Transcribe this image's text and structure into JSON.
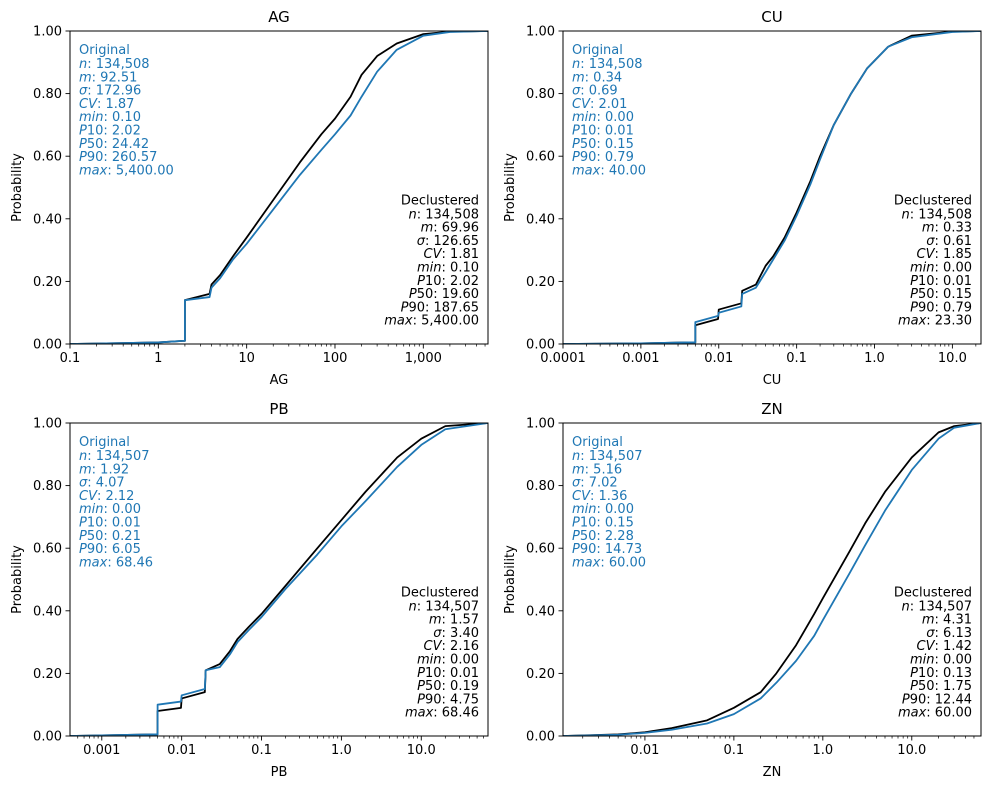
{
  "chart_data": [
    {
      "type": "line",
      "title": "AG",
      "xlabel": "AG",
      "ylabel": "Probability",
      "xscale": "log",
      "xlim": [
        0.1,
        5400
      ],
      "ylim": [
        0,
        1
      ],
      "xticks": [
        0.1,
        1,
        10,
        100,
        1000
      ],
      "xtick_labels": [
        "0.1",
        "1",
        "10",
        "100",
        "1,000"
      ],
      "yticks": [
        0,
        0.2,
        0.4,
        0.6,
        0.8,
        1.0
      ],
      "ytick_labels": [
        "0.00",
        "0.20",
        "0.40",
        "0.60",
        "0.80",
        "1.00"
      ],
      "series": [
        {
          "name": "Declustered",
          "color": "#000000",
          "x": [
            0.1,
            1.0,
            1.9,
            2.0,
            2.0,
            3.8,
            4.0,
            5.0,
            7.0,
            10,
            20,
            40,
            70,
            100,
            150,
            200,
            300,
            500,
            1000,
            2000,
            5400
          ],
          "y": [
            0,
            0.005,
            0.01,
            0.01,
            0.14,
            0.16,
            0.19,
            0.22,
            0.28,
            0.34,
            0.46,
            0.58,
            0.67,
            0.72,
            0.79,
            0.86,
            0.92,
            0.96,
            0.99,
            0.998,
            1.0
          ]
        },
        {
          "name": "Original",
          "color": "#1f77b4",
          "x": [
            0.1,
            1.0,
            1.9,
            2.0,
            2.0,
            3.8,
            4.0,
            5.0,
            7.0,
            10,
            20,
            40,
            70,
            100,
            150,
            200,
            300,
            500,
            1000,
            2000,
            5400
          ],
          "y": [
            0,
            0.005,
            0.01,
            0.01,
            0.14,
            0.15,
            0.18,
            0.21,
            0.27,
            0.32,
            0.43,
            0.54,
            0.62,
            0.67,
            0.73,
            0.79,
            0.87,
            0.94,
            0.985,
            0.997,
            1.0
          ]
        }
      ],
      "stats_original": {
        "label": "Original",
        "lines": [
          "n: 134,508",
          "m: 92.51",
          "σ: 172.96",
          "CV: 1.87",
          "min: 0.10",
          "P10: 2.02",
          "P50: 24.42",
          "P90: 260.57",
          "max: 5,400.00"
        ]
      },
      "stats_declustered": {
        "label": "Declustered",
        "lines": [
          "n: 134,508",
          "m: 69.96",
          "σ: 126.65",
          "CV: 1.81",
          "min: 0.10",
          "P10: 2.02",
          "P50: 19.60",
          "P90: 187.65",
          "max: 5,400.00"
        ]
      }
    },
    {
      "type": "line",
      "title": "CU",
      "xlabel": "CU",
      "ylabel": "Probability",
      "xscale": "log",
      "xlim": [
        0.0001,
        23.3
      ],
      "ylim": [
        0,
        1
      ],
      "xticks": [
        0.0001,
        0.001,
        0.01,
        0.1,
        1,
        10
      ],
      "xtick_labels": [
        "0.0001",
        "0.001",
        "0.01",
        "0.1",
        "1.0",
        "10.0"
      ],
      "yticks": [
        0,
        0.2,
        0.4,
        0.6,
        0.8,
        1.0
      ],
      "ytick_labels": [
        "0.00",
        "0.20",
        "0.40",
        "0.60",
        "0.80",
        "1.00"
      ],
      "series": [
        {
          "name": "Declustered",
          "color": "#000000",
          "x": [
            0.0001,
            0.001,
            0.004,
            0.005,
            0.005,
            0.0098,
            0.01,
            0.0195,
            0.02,
            0.03,
            0.04,
            0.05,
            0.07,
            0.1,
            0.15,
            0.2,
            0.3,
            0.5,
            0.8,
            1.5,
            3,
            10,
            23.3
          ],
          "y": [
            0,
            0.002,
            0.005,
            0.005,
            0.06,
            0.08,
            0.11,
            0.13,
            0.17,
            0.19,
            0.25,
            0.28,
            0.34,
            0.42,
            0.52,
            0.6,
            0.7,
            0.8,
            0.88,
            0.95,
            0.985,
            0.998,
            1.0
          ]
        },
        {
          "name": "Original",
          "color": "#1f77b4",
          "x": [
            0.0001,
            0.001,
            0.004,
            0.005,
            0.005,
            0.0098,
            0.01,
            0.0195,
            0.02,
            0.03,
            0.04,
            0.05,
            0.07,
            0.1,
            0.15,
            0.2,
            0.3,
            0.5,
            0.8,
            1.5,
            3,
            10,
            23.3
          ],
          "y": [
            0,
            0.002,
            0.005,
            0.005,
            0.07,
            0.09,
            0.1,
            0.12,
            0.16,
            0.18,
            0.23,
            0.27,
            0.33,
            0.41,
            0.51,
            0.59,
            0.7,
            0.8,
            0.88,
            0.95,
            0.98,
            0.997,
            1.0
          ]
        }
      ],
      "stats_original": {
        "label": "Original",
        "lines": [
          "n: 134,508",
          "m: 0.34",
          "σ: 0.69",
          "CV: 2.01",
          "min: 0.00",
          "P10: 0.01",
          "P50: 0.15",
          "P90: 0.79",
          "max: 40.00"
        ]
      },
      "stats_declustered": {
        "label": "Declustered",
        "lines": [
          "n: 134,508",
          "m: 0.33",
          "σ: 0.61",
          "CV: 1.85",
          "min: 0.00",
          "P10: 0.01",
          "P50: 0.15",
          "P90: 0.79",
          "max: 23.30"
        ]
      }
    },
    {
      "type": "line",
      "title": "PB",
      "xlabel": "PB",
      "ylabel": "Probability",
      "xscale": "log",
      "xlim": [
        0.0004,
        68.46
      ],
      "ylim": [
        0,
        1
      ],
      "xticks": [
        0.001,
        0.01,
        0.1,
        1,
        10
      ],
      "xtick_labels": [
        "0.001",
        "0.01",
        "0.1",
        "1.0",
        "10.0"
      ],
      "yticks": [
        0,
        0.2,
        0.4,
        0.6,
        0.8,
        1.0
      ],
      "ytick_labels": [
        "0.00",
        "0.20",
        "0.40",
        "0.60",
        "0.80",
        "1.00"
      ],
      "series": [
        {
          "name": "Declustered",
          "color": "#000000",
          "x": [
            0.0004,
            0.001,
            0.0045,
            0.005,
            0.005,
            0.0098,
            0.01,
            0.0195,
            0.02,
            0.03,
            0.04,
            0.05,
            0.07,
            0.1,
            0.2,
            0.5,
            1,
            2,
            5,
            10,
            20,
            68.46
          ],
          "y": [
            0,
            0.002,
            0.005,
            0.005,
            0.08,
            0.09,
            0.12,
            0.14,
            0.21,
            0.23,
            0.27,
            0.31,
            0.35,
            0.39,
            0.48,
            0.6,
            0.69,
            0.78,
            0.89,
            0.95,
            0.99,
            1.0
          ]
        },
        {
          "name": "Original",
          "color": "#1f77b4",
          "x": [
            0.0004,
            0.001,
            0.0045,
            0.005,
            0.005,
            0.0098,
            0.01,
            0.0195,
            0.02,
            0.03,
            0.04,
            0.05,
            0.07,
            0.1,
            0.2,
            0.5,
            1,
            2,
            5,
            10,
            20,
            68.46
          ],
          "y": [
            0,
            0.002,
            0.005,
            0.005,
            0.1,
            0.11,
            0.13,
            0.15,
            0.21,
            0.22,
            0.26,
            0.3,
            0.34,
            0.38,
            0.47,
            0.58,
            0.67,
            0.75,
            0.86,
            0.93,
            0.98,
            1.0
          ]
        }
      ],
      "stats_original": {
        "label": "Original",
        "lines": [
          "n: 134,507",
          "m: 1.92",
          "σ: 4.07",
          "CV: 2.12",
          "min: 0.00",
          "P10: 0.01",
          "P50: 0.21",
          "P90: 6.05",
          "max: 68.46"
        ]
      },
      "stats_declustered": {
        "label": "Declustered",
        "lines": [
          "n: 134,507",
          "m: 1.57",
          "σ: 3.40",
          "CV: 2.16",
          "min: 0.00",
          "P10: 0.01",
          "P50: 0.19",
          "P90: 4.75",
          "max: 68.46"
        ]
      }
    },
    {
      "type": "line",
      "title": "ZN",
      "xlabel": "ZN",
      "ylabel": "Probability",
      "xscale": "log",
      "xlim": [
        0.0012,
        60
      ],
      "ylim": [
        0,
        1
      ],
      "xticks": [
        0.01,
        0.1,
        1,
        10
      ],
      "xtick_labels": [
        "0.01",
        "0.1",
        "1.0",
        "10.0"
      ],
      "yticks": [
        0,
        0.2,
        0.4,
        0.6,
        0.8,
        1.0
      ],
      "ytick_labels": [
        "0.00",
        "0.20",
        "0.40",
        "0.60",
        "0.80",
        "1.00"
      ],
      "series": [
        {
          "name": "Declustered",
          "color": "#000000",
          "x": [
            0.0012,
            0.005,
            0.01,
            0.02,
            0.05,
            0.1,
            0.2,
            0.3,
            0.5,
            0.8,
            1,
            2,
            3,
            5,
            10,
            20,
            30,
            60
          ],
          "y": [
            0,
            0.005,
            0.012,
            0.025,
            0.05,
            0.09,
            0.14,
            0.2,
            0.29,
            0.39,
            0.44,
            0.59,
            0.68,
            0.78,
            0.89,
            0.97,
            0.99,
            1.0
          ]
        },
        {
          "name": "Original",
          "color": "#1f77b4",
          "x": [
            0.0012,
            0.005,
            0.01,
            0.02,
            0.05,
            0.1,
            0.2,
            0.3,
            0.5,
            0.8,
            1,
            2,
            3,
            5,
            10,
            20,
            30,
            60
          ],
          "y": [
            0,
            0.004,
            0.01,
            0.02,
            0.04,
            0.07,
            0.12,
            0.17,
            0.24,
            0.32,
            0.37,
            0.52,
            0.61,
            0.72,
            0.85,
            0.95,
            0.985,
            1.0
          ]
        }
      ],
      "stats_original": {
        "label": "Original",
        "lines": [
          "n: 134,507",
          "m: 5.16",
          "σ: 7.02",
          "CV: 1.36",
          "min: 0.00",
          "P10: 0.15",
          "P50: 2.28",
          "P90: 14.73",
          "max: 60.00"
        ]
      },
      "stats_declustered": {
        "label": "Declustered",
        "lines": [
          "n: 134,507",
          "m: 4.31",
          "σ: 6.13",
          "CV: 1.42",
          "min: 0.00",
          "P10: 0.13",
          "P50: 1.75",
          "P90: 12.44",
          "max: 60.00"
        ]
      }
    }
  ]
}
